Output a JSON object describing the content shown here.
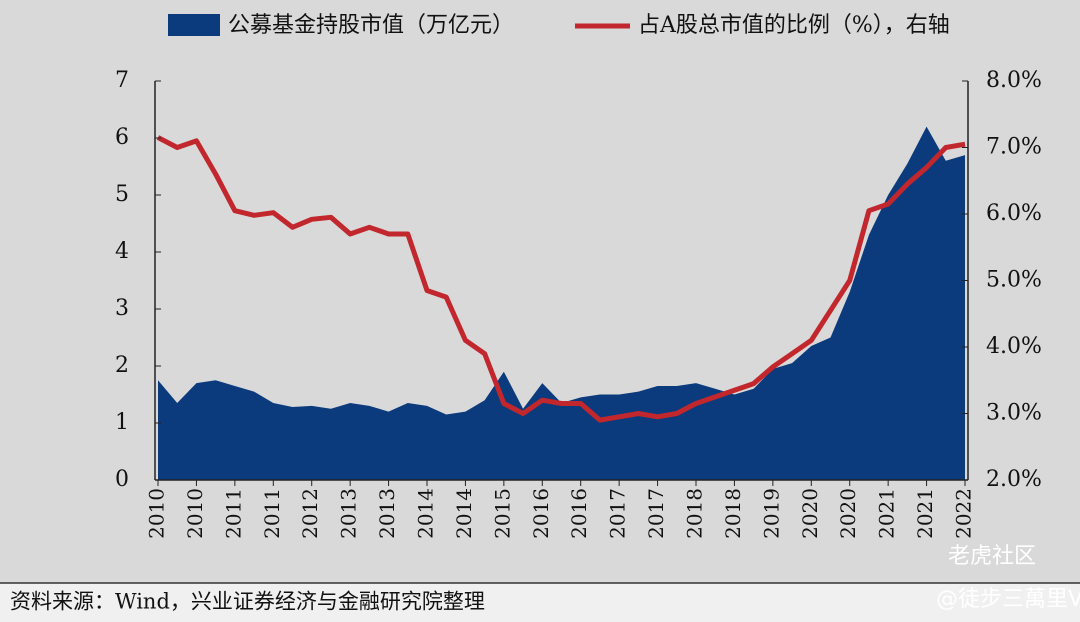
{
  "chart_data": {
    "type": "area-line",
    "legend": [
      "公募基金持股市值（万亿元）",
      "占A股总市值的比例（%），右轴"
    ],
    "categories": [
      "2010",
      null,
      "2010",
      null,
      "2011",
      null,
      "2011",
      null,
      "2012",
      null,
      "2013",
      null,
      "2013",
      null,
      "2014",
      null,
      "2014",
      null,
      "2015",
      null,
      "2016",
      null,
      "2016",
      null,
      "2017",
      null,
      "2017",
      null,
      "2018",
      null,
      "2018",
      null,
      "2019",
      null,
      "2020",
      null,
      "2020",
      null,
      "2021",
      null,
      "2021",
      null,
      "2022"
    ],
    "series": [
      {
        "name": "公募基金持股市值（万亿元）",
        "type": "area",
        "color": "#0b3b7c",
        "values": [
          1.75,
          1.35,
          1.7,
          1.75,
          1.65,
          1.55,
          1.35,
          1.28,
          1.3,
          1.25,
          1.35,
          1.3,
          1.2,
          1.35,
          1.3,
          1.15,
          1.2,
          1.4,
          1.9,
          1.25,
          1.7,
          1.35,
          1.45,
          1.5,
          1.5,
          1.55,
          1.65,
          1.65,
          1.7,
          1.6,
          1.5,
          1.6,
          1.95,
          2.05,
          2.35,
          2.5,
          3.3,
          4.3,
          5.0,
          5.55,
          6.2,
          5.6,
          5.7
        ]
      },
      {
        "name": "占A股总市值的比例（%），右轴",
        "type": "line",
        "axis": "y2",
        "color": "#c1272d",
        "values": [
          7.15,
          7.0,
          7.1,
          6.6,
          6.05,
          5.98,
          6.02,
          5.8,
          5.92,
          5.95,
          5.7,
          5.8,
          5.7,
          5.7,
          4.85,
          4.75,
          4.1,
          3.9,
          3.15,
          3.0,
          3.2,
          3.15,
          3.15,
          2.9,
          2.95,
          3.0,
          2.95,
          3.0,
          3.15,
          3.25,
          3.35,
          3.45,
          3.7,
          3.9,
          4.1,
          4.55,
          5.0,
          6.05,
          6.15,
          6.45,
          6.7,
          7.0,
          7.05
        ]
      }
    ],
    "ylim": [
      0,
      7
    ],
    "yticks": [
      0,
      1,
      2,
      3,
      4,
      5,
      6,
      7
    ],
    "y2lim": [
      2,
      8
    ],
    "y2ticks": [
      {
        "value": 2,
        "label": "2.0%"
      },
      {
        "value": 3,
        "label": "3.0%"
      },
      {
        "value": 4,
        "label": "4.0%"
      },
      {
        "value": 5,
        "label": "5.0%"
      },
      {
        "value": 6,
        "label": "6.0%"
      },
      {
        "value": 7,
        "label": "7.0%"
      },
      {
        "value": 8,
        "label": "8.0%"
      }
    ],
    "source": "资料来源：Wind，兴业证券经济与金融研究院整理",
    "watermark": [
      "老虎社区",
      "@徒步三萬里V"
    ]
  }
}
